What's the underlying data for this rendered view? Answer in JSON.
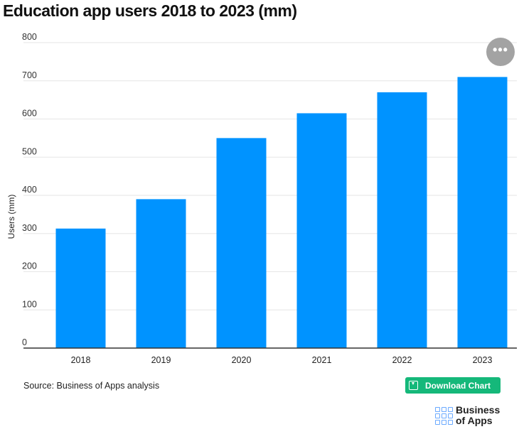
{
  "header": {
    "title": "Education app users 2018 to 2023 (mm)"
  },
  "chart_data": {
    "type": "bar",
    "categories": [
      "2018",
      "2019",
      "2020",
      "2021",
      "2022",
      "2023"
    ],
    "values": [
      313,
      390,
      550,
      615,
      670,
      710
    ],
    "ylabel": "Users (mm)",
    "ylim": [
      0,
      800
    ],
    "yticks": [
      "0",
      "100",
      "200",
      "300",
      "400",
      "500",
      "600",
      "700",
      "800"
    ],
    "grid": true,
    "bar_color": "#0093ff"
  },
  "menu": {
    "icon": "more-horizontal-icon",
    "label": "•••"
  },
  "footer": {
    "source": "Source: Business of Apps analysis",
    "download_label": "Download Chart",
    "download_color": "#15b87a",
    "logo_line1": "Business",
    "logo_line2": "of Apps"
  }
}
